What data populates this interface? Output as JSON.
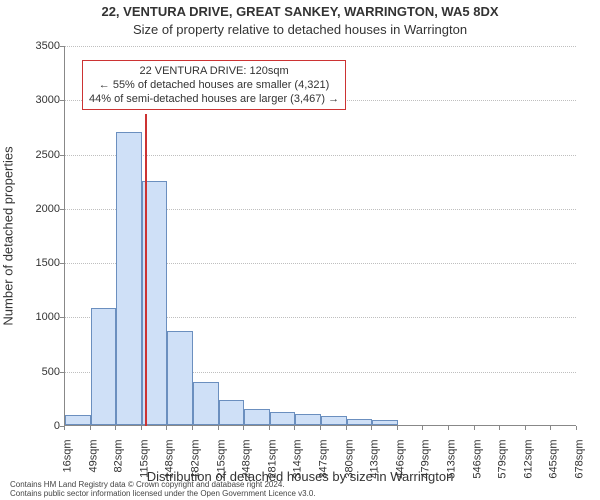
{
  "title": "22, VENTURA DRIVE, GREAT SANKEY, WARRINGTON, WA5 8DX",
  "subtitle": "Size of property relative to detached houses in Warrington",
  "x_axis_label": "Distribution of detached houses by size in Warrington",
  "y_axis_label": "Number of detached properties",
  "chart": {
    "type": "histogram",
    "ylim": [
      0,
      3500
    ],
    "ytick_step": 500,
    "yticks": [
      0,
      500,
      1000,
      1500,
      2000,
      2500,
      3000,
      3500
    ],
    "xticks": [
      "16sqm",
      "49sqm",
      "82sqm",
      "115sqm",
      "148sqm",
      "182sqm",
      "215sqm",
      "248sqm",
      "281sqm",
      "314sqm",
      "347sqm",
      "380sqm",
      "413sqm",
      "446sqm",
      "479sqm",
      "513sqm",
      "546sqm",
      "579sqm",
      "612sqm",
      "645sqm",
      "678sqm"
    ],
    "bar_values": [
      90,
      1080,
      2700,
      2250,
      870,
      400,
      230,
      150,
      120,
      100,
      80,
      60,
      50,
      0,
      0,
      0,
      0,
      0,
      0,
      0
    ],
    "bar_fill_color": "#cfe0f7",
    "bar_border_color": "#6b8fbf",
    "background_color": "#ffffff",
    "grid_color": "#bfbfbf",
    "yaxis_fontsize": 11,
    "xaxis_fontsize": 11,
    "label_fontsize": 13,
    "title_fontsize": 13
  },
  "marker": {
    "color": "#cc3333",
    "x_value": 120,
    "x_range": [
      16,
      678
    ]
  },
  "annotation": {
    "line1": "22 VENTURA DRIVE: 120sqm",
    "line2": "← 55% of detached houses are smaller (4,321)",
    "line3": "44% of semi-detached houses are larger (3,467) →",
    "border_color": "#cc3333",
    "fontsize": 11
  },
  "license_lines": [
    "Contains HM Land Registry data © Crown copyright and database right 2024.",
    "Contains public sector information licensed under the Open Government Licence v3.0."
  ]
}
